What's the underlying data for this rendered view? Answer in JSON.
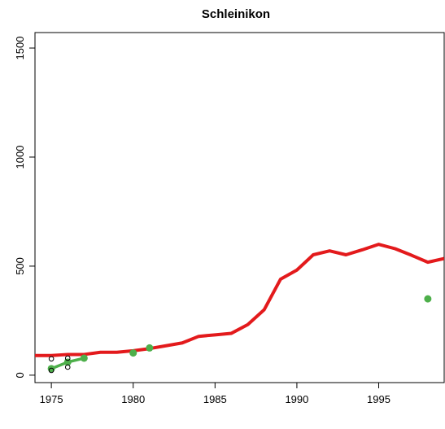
{
  "chart_data": {
    "type": "line",
    "title": "Schleinikon",
    "xlim": [
      1974,
      1999
    ],
    "xticks": [
      1975,
      1980,
      1985,
      1990,
      1995
    ],
    "ylim": [
      -34,
      1571
    ],
    "yticks": [
      0,
      500,
      1000,
      1500
    ],
    "series": [
      {
        "color": "#e31a1c",
        "style": "line",
        "x": [
          1974,
          1975,
          1976,
          1977,
          1978,
          1979,
          1980,
          1981,
          1982,
          1983,
          1984,
          1985,
          1986,
          1987,
          1988,
          1989,
          1990,
          1991,
          1992,
          1993,
          1994,
          1995,
          1996,
          1997,
          1998,
          1999
        ],
        "values": [
          90,
          90,
          95,
          95,
          105,
          105,
          112,
          122,
          135,
          148,
          178,
          185,
          192,
          232,
          300,
          440,
          482,
          552,
          570,
          552,
          575,
          600,
          580,
          550,
          518,
          535
        ]
      },
      {
        "color": "#4daf4a",
        "style": "line",
        "x": [
          1975,
          1976,
          1977
        ],
        "values": [
          30,
          60,
          78
        ]
      },
      {
        "color": "#4daf4a",
        "style": "points",
        "x": [
          1975,
          1976,
          1977,
          1980,
          1981,
          1998
        ],
        "values": [
          30,
          60,
          78,
          102,
          125,
          350
        ]
      },
      {
        "color": "#000000",
        "style": "open-points",
        "x": [
          1975,
          1975,
          1976,
          1976
        ],
        "values": [
          75,
          22,
          37,
          78
        ]
      }
    ]
  }
}
